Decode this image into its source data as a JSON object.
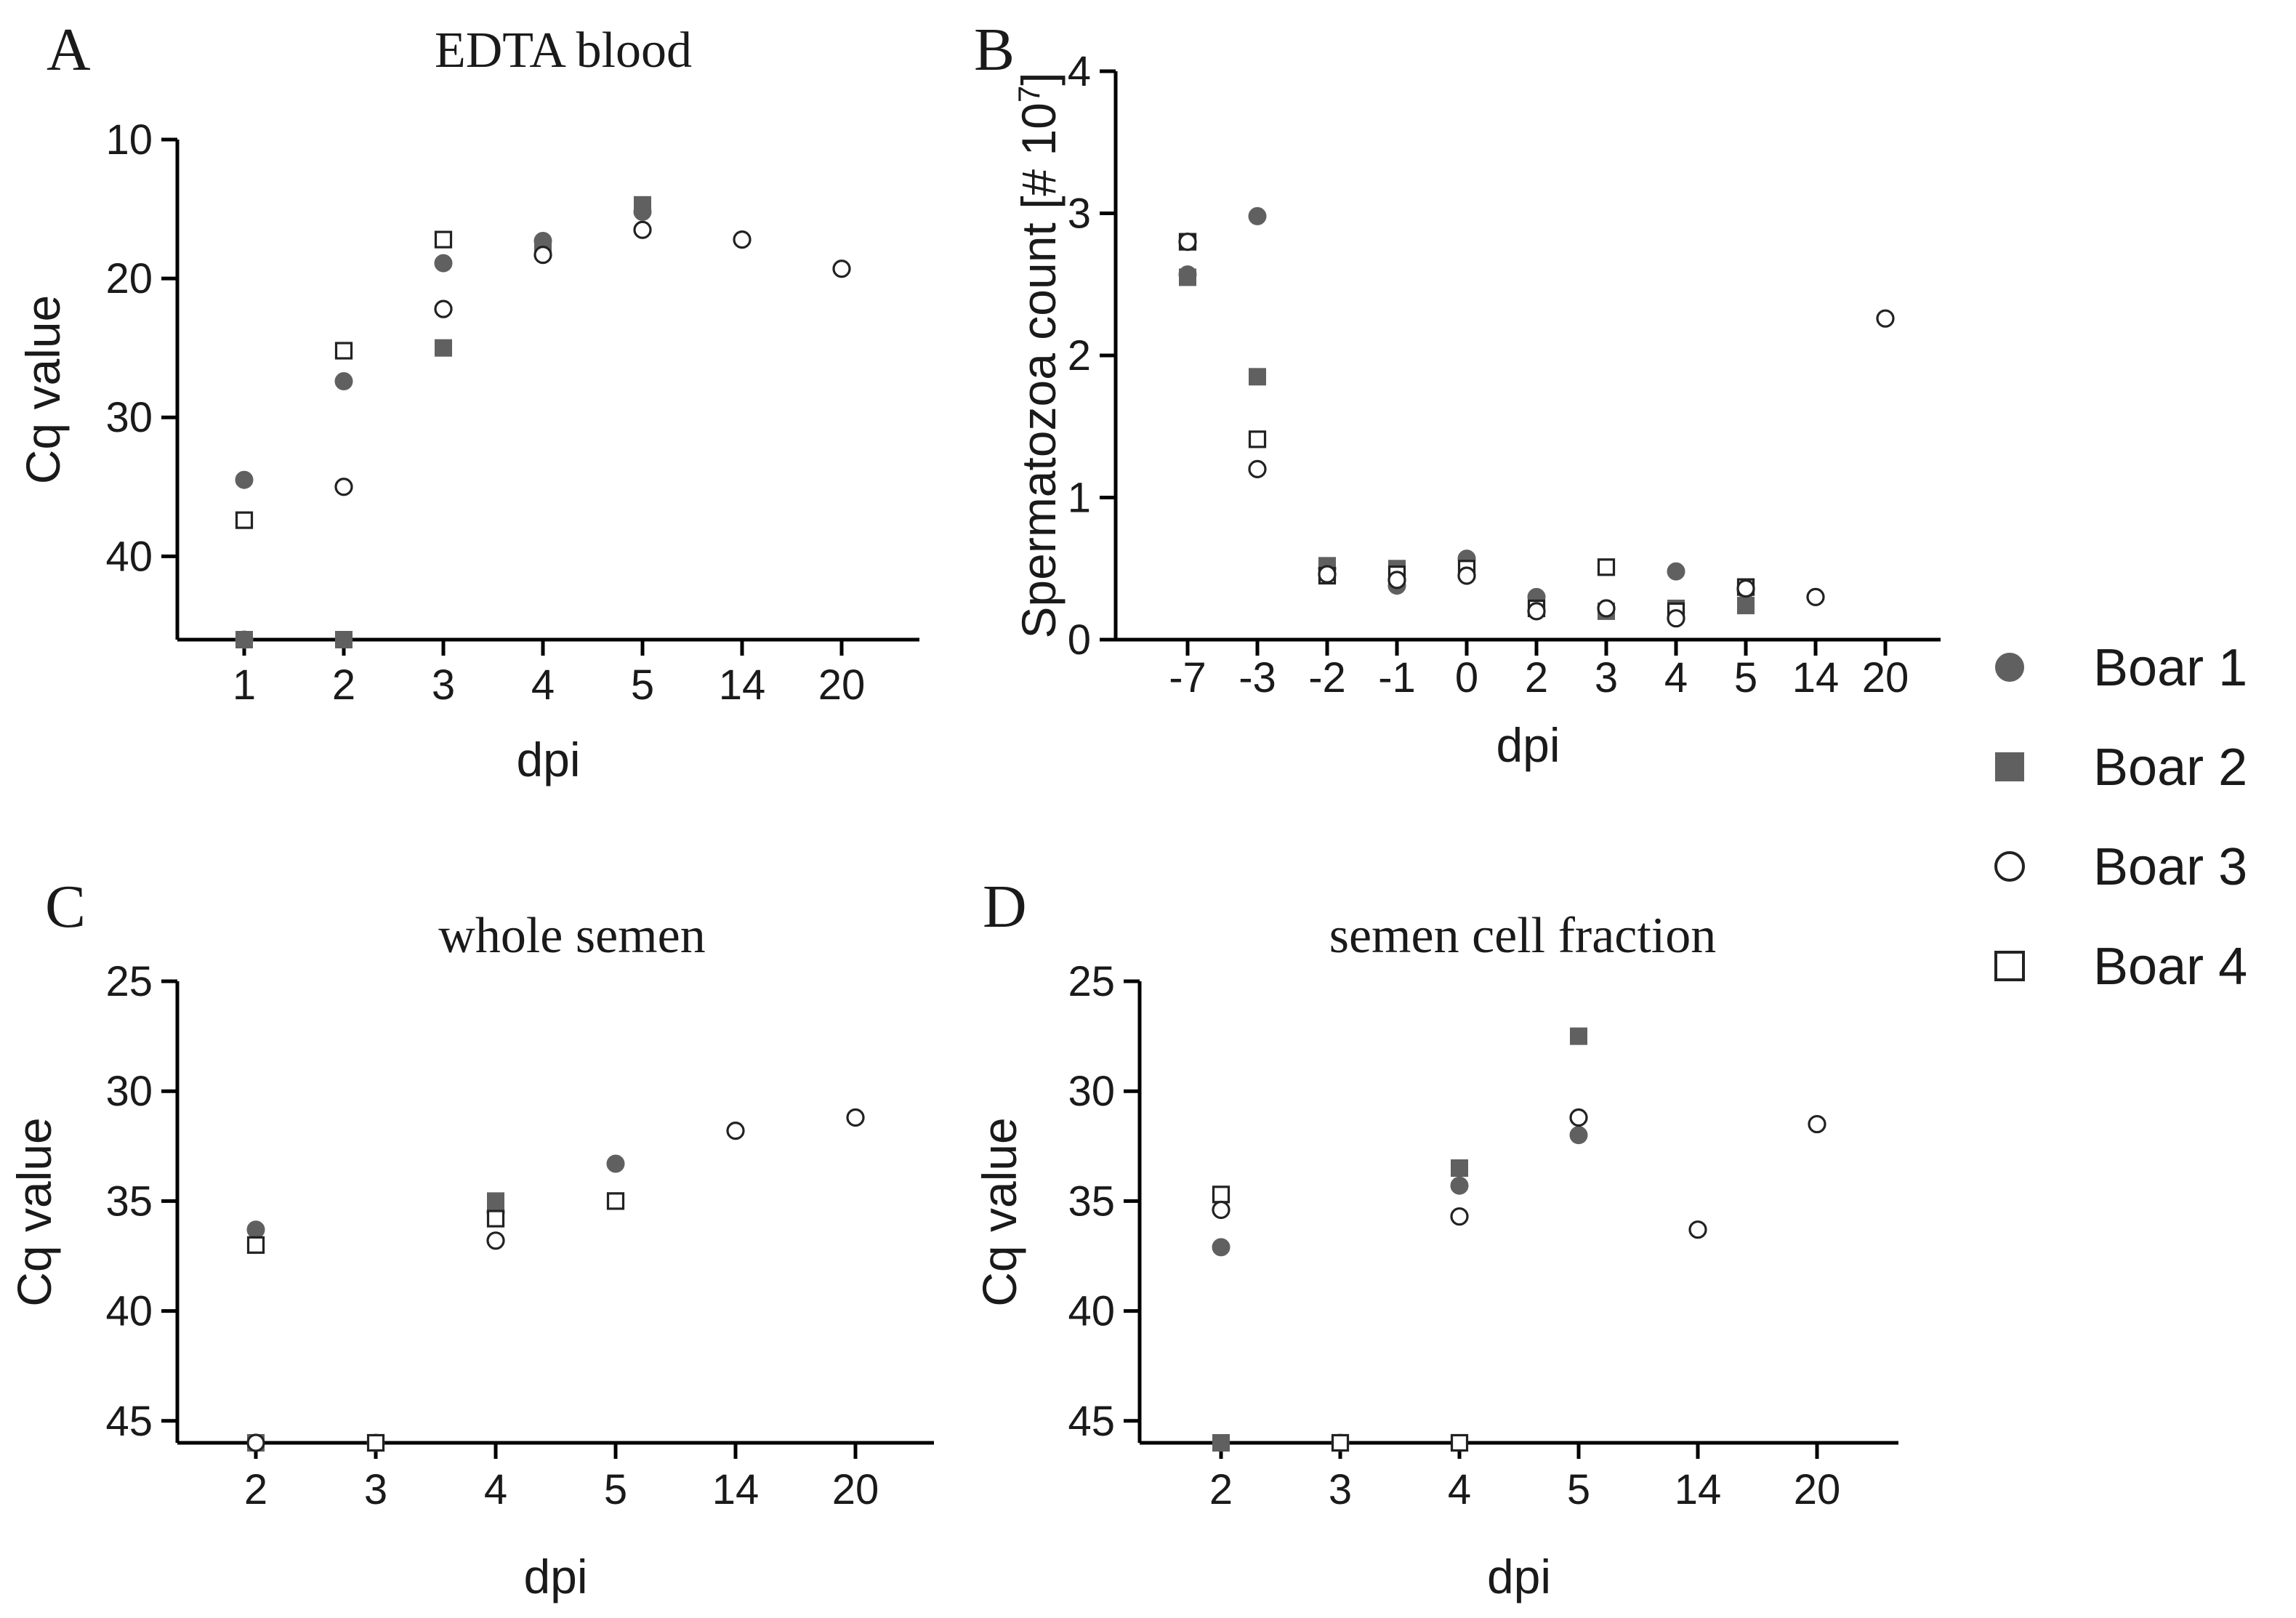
{
  "colors": {
    "filled": "#606060",
    "open_fill": "#ffffff",
    "open_stroke": "#222222",
    "axis": "#000000"
  },
  "legend": [
    {
      "label": "Boar 1",
      "marker": "circle-filled"
    },
    {
      "label": "Boar 2",
      "marker": "square-filled"
    },
    {
      "label": "Boar 3",
      "marker": "circle-open"
    },
    {
      "label": "Boar 4",
      "marker": "square-open"
    }
  ],
  "chart_data": [
    {
      "panel": "A",
      "title": "EDTA blood",
      "type": "scatter",
      "xlabel": "dpi",
      "ylabel": "Cq value",
      "categories": [
        "1",
        "2",
        "3",
        "4",
        "5",
        "14",
        "20"
      ],
      "y_ticks": [
        "10",
        "20",
        "30",
        "40"
      ],
      "ylim": [
        10,
        46
      ],
      "y_inverted": true,
      "series": [
        {
          "name": "Boar 1",
          "marker": "circle-filled",
          "points": [
            [
              "1",
              34.5
            ],
            [
              "1",
              46
            ],
            [
              "2",
              27.4
            ],
            [
              "3",
              18.9
            ],
            [
              "4",
              17.3
            ],
            [
              "5",
              15.2
            ]
          ]
        },
        {
          "name": "Boar 2",
          "marker": "square-filled",
          "points": [
            [
              "1",
              46
            ],
            [
              "2",
              46
            ],
            [
              "3",
              25.0
            ],
            [
              "4",
              17.8
            ],
            [
              "5",
              14.7
            ]
          ]
        },
        {
          "name": "Boar 3",
          "marker": "circle-open",
          "points": [
            [
              "2",
              35.0
            ],
            [
              "3",
              22.2
            ],
            [
              "4",
              18.3
            ],
            [
              "5",
              16.5
            ],
            [
              "14",
              17.2
            ],
            [
              "20",
              19.3
            ]
          ]
        },
        {
          "name": "Boar 4",
          "marker": "square-open",
          "points": [
            [
              "1",
              37.4
            ],
            [
              "2",
              25.2
            ],
            [
              "3",
              17.2
            ]
          ]
        }
      ]
    },
    {
      "panel": "B",
      "title": "",
      "type": "scatter",
      "xlabel": "dpi",
      "ylabel": "Spermatozoa count [# 10",
      "ylabel_superscript": "7",
      "ylabel_suffix": "]",
      "categories": [
        "-7",
        "-3",
        "-2",
        "-1",
        "0",
        "2",
        "3",
        "4",
        "5",
        "14",
        "20"
      ],
      "y_ticks": [
        "0",
        "1",
        "2",
        "3",
        "4"
      ],
      "ylim": [
        0,
        4
      ],
      "y_inverted": false,
      "series": [
        {
          "name": "Boar 1",
          "marker": "circle-filled",
          "points": [
            [
              "-7",
              2.57
            ],
            [
              "-3",
              2.98
            ],
            [
              "-2",
              0.5
            ],
            [
              "-1",
              0.38
            ],
            [
              "0",
              0.57
            ],
            [
              "2",
              0.3
            ],
            [
              "3",
              0.22
            ],
            [
              "4",
              0.48
            ],
            [
              "5",
              0.35
            ]
          ]
        },
        {
          "name": "Boar 2",
          "marker": "square-filled",
          "points": [
            [
              "-7",
              2.55
            ],
            [
              "-3",
              1.85
            ],
            [
              "-2",
              0.52
            ],
            [
              "-1",
              0.5
            ],
            [
              "0",
              0.52
            ],
            [
              "2",
              0.25
            ],
            [
              "3",
              0.2
            ],
            [
              "4",
              0.22
            ],
            [
              "5",
              0.24
            ]
          ]
        },
        {
          "name": "Boar 3",
          "marker": "circle-open",
          "points": [
            [
              "-7",
              2.8
            ],
            [
              "-3",
              1.2
            ],
            [
              "-2",
              0.46
            ],
            [
              "-1",
              0.42
            ],
            [
              "0",
              0.45
            ],
            [
              "2",
              0.2
            ],
            [
              "3",
              0.22
            ],
            [
              "4",
              0.15
            ],
            [
              "5",
              0.36
            ],
            [
              "14",
              0.3
            ],
            [
              "20",
              2.26
            ]
          ]
        },
        {
          "name": "Boar 4",
          "marker": "square-open",
          "points": [
            [
              "-7",
              2.8
            ],
            [
              "-3",
              1.41
            ],
            [
              "-2",
              0.45
            ],
            [
              "-1",
              0.46
            ],
            [
              "0",
              0.5
            ],
            [
              "2",
              0.22
            ],
            [
              "3",
              0.51
            ],
            [
              "4",
              0.2
            ],
            [
              "5",
              0.37
            ]
          ]
        }
      ]
    },
    {
      "panel": "C",
      "title": "whole semen",
      "type": "scatter",
      "xlabel": "dpi",
      "ylabel": "Cq value",
      "categories": [
        "2",
        "3",
        "4",
        "5",
        "14",
        "20"
      ],
      "y_ticks": [
        "25",
        "30",
        "35",
        "40",
        "45"
      ],
      "ylim": [
        25,
        46
      ],
      "y_inverted": true,
      "series": [
        {
          "name": "Boar 1",
          "marker": "circle-filled",
          "points": [
            [
              "2",
              36.3
            ],
            [
              "3",
              46
            ],
            [
              "4",
              35.5
            ],
            [
              "5",
              33.3
            ]
          ]
        },
        {
          "name": "Boar 2",
          "marker": "square-filled",
          "points": [
            [
              "2",
              46
            ],
            [
              "3",
              46
            ],
            [
              "4",
              35.0
            ],
            [
              "5",
              35.0
            ]
          ]
        },
        {
          "name": "Boar 3",
          "marker": "circle-open",
          "points": [
            [
              "2",
              46
            ],
            [
              "4",
              36.8
            ],
            [
              "14",
              31.8
            ],
            [
              "20",
              31.2
            ]
          ]
        },
        {
          "name": "Boar 4",
          "marker": "square-open",
          "points": [
            [
              "2",
              37.0
            ],
            [
              "3",
              46
            ],
            [
              "4",
              35.8
            ],
            [
              "5",
              35.0
            ]
          ]
        }
      ]
    },
    {
      "panel": "D",
      "title": "semen cell fraction",
      "type": "scatter",
      "xlabel": "dpi",
      "ylabel": "Cq value",
      "categories": [
        "2",
        "3",
        "4",
        "5",
        "14",
        "20"
      ],
      "y_ticks": [
        "25",
        "30",
        "35",
        "40",
        "45"
      ],
      "ylim": [
        25,
        46
      ],
      "y_inverted": true,
      "series": [
        {
          "name": "Boar 1",
          "marker": "circle-filled",
          "points": [
            [
              "2",
              37.1
            ],
            [
              "3",
              46
            ],
            [
              "4",
              34.3
            ],
            [
              "5",
              32.0
            ]
          ]
        },
        {
          "name": "Boar 2",
          "marker": "square-filled",
          "points": [
            [
              "2",
              46
            ],
            [
              "3",
              46
            ],
            [
              "4",
              33.5
            ],
            [
              "5",
              27.5
            ]
          ]
        },
        {
          "name": "Boar 3",
          "marker": "circle-open",
          "points": [
            [
              "2",
              35.4
            ],
            [
              "4",
              35.7
            ],
            [
              "5",
              31.2
            ],
            [
              "14",
              36.3
            ],
            [
              "20",
              31.5
            ]
          ]
        },
        {
          "name": "Boar 4",
          "marker": "square-open",
          "points": [
            [
              "2",
              34.7
            ],
            [
              "3",
              46
            ],
            [
              "4",
              46
            ]
          ]
        }
      ]
    }
  ]
}
